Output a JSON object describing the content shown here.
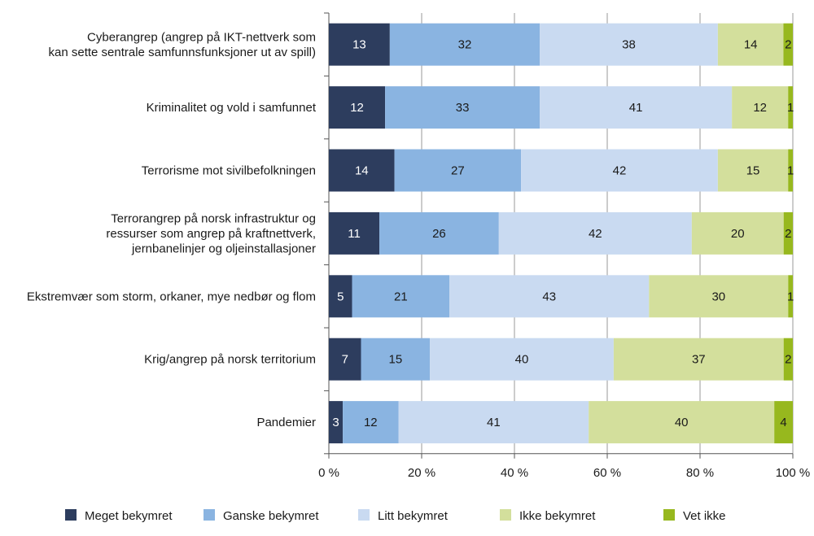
{
  "chart_data": {
    "type": "bar",
    "orientation": "horizontal",
    "stacked": true,
    "percent_stacked": true,
    "categories": [
      [
        "Cyberangrep (angrep på IKT-nettverk som",
        "kan sette sentrale samfunnsfunksjoner ut av spill)"
      ],
      [
        "Kriminalitet og vold i samfunnet"
      ],
      [
        "Terrorisme mot sivilbefolkningen"
      ],
      [
        "Terrorangrep på norsk infrastruktur og",
        "ressurser som angrep på kraftnettverk,",
        "jernbanelinjer og oljeinstallasjoner"
      ],
      [
        "Ekstremvær som storm, orkaner, mye nedbør og flom"
      ],
      [
        "Krig/angrep på norsk territorium"
      ],
      [
        "Pandemier"
      ]
    ],
    "series": [
      {
        "name": "Meget bekymret",
        "color": "#2d3d5e",
        "label_color": "#ffffff",
        "values": [
          13,
          12,
          14,
          11,
          5,
          7,
          3
        ]
      },
      {
        "name": "Ganske bekymret",
        "color": "#8ab4e1",
        "label_color": "#1a1a1a",
        "values": [
          32,
          33,
          27,
          26,
          21,
          15,
          12
        ]
      },
      {
        "name": "Litt bekymret",
        "color": "#c9daf1",
        "label_color": "#1a1a1a",
        "values": [
          38,
          41,
          42,
          42,
          43,
          40,
          41
        ]
      },
      {
        "name": "Ikke bekymret",
        "color": "#d3df9c",
        "label_color": "#1a1a1a",
        "values": [
          14,
          12,
          15,
          20,
          30,
          37,
          40
        ]
      },
      {
        "name": "Vet ikke",
        "color": "#97b81e",
        "label_color": "#1a1a1a",
        "values": [
          2,
          1,
          1,
          2,
          1,
          2,
          4
        ]
      }
    ],
    "xlim": [
      0,
      100
    ],
    "xticks": [
      "0 %",
      "20 %",
      "40 %",
      "60 %",
      "80 %",
      "100 %"
    ],
    "grid": "vertical",
    "legend": "bottom"
  }
}
